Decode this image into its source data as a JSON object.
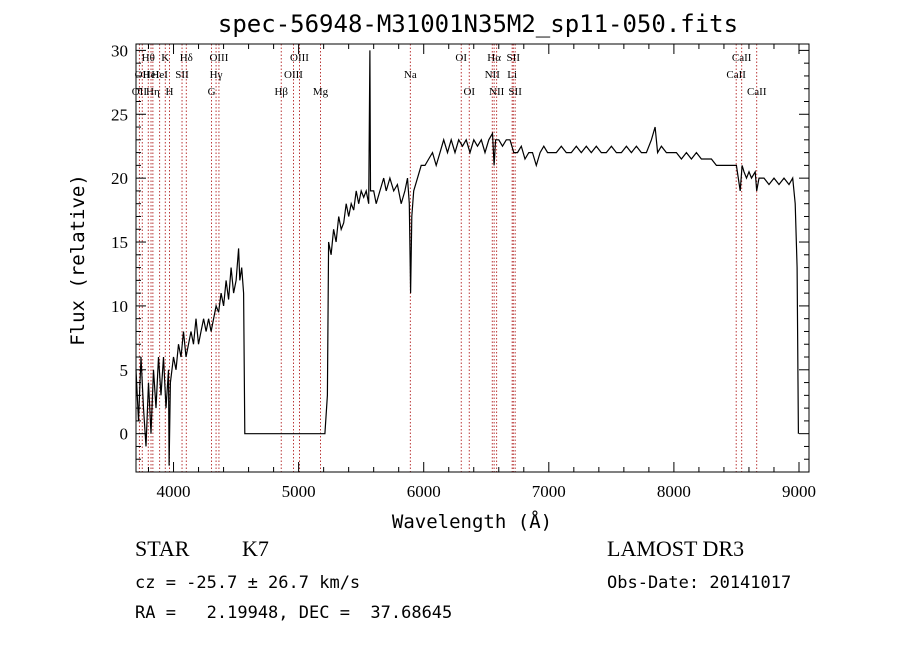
{
  "title": "spec-56948-M31001N35M2_sp11-050.fits",
  "info": {
    "object_type": "STAR",
    "subclass": "K7",
    "survey": "LAMOST DR3",
    "cz": "cz = -25.7 ± 26.7 km/s",
    "obs_date": "Obs-Date: 20141017",
    "radec": "RA =   2.19948, DEC =  37.68645"
  },
  "chart_data": {
    "type": "line",
    "title": "spec-56948-M31001N35M2_sp11-050.fits",
    "xlabel": "Wavelength (Å)",
    "ylabel": "Flux (relative)",
    "xlim": [
      3700,
      9080
    ],
    "ylim": [
      -3,
      30.5
    ],
    "xticks": [
      4000,
      5000,
      6000,
      7000,
      8000,
      9000
    ],
    "yticks": [
      0,
      5,
      10,
      15,
      20,
      25,
      30
    ],
    "series": [
      {
        "name": "flux",
        "points": [
          [
            3700,
            5
          ],
          [
            3720,
            1
          ],
          [
            3740,
            6
          ],
          [
            3760,
            2
          ],
          [
            3780,
            -1
          ],
          [
            3800,
            4
          ],
          [
            3820,
            0
          ],
          [
            3840,
            5
          ],
          [
            3860,
            2
          ],
          [
            3880,
            6
          ],
          [
            3900,
            3
          ],
          [
            3920,
            6
          ],
          [
            3940,
            2
          ],
          [
            3960,
            5
          ],
          [
            3965,
            -2.5
          ],
          [
            3975,
            4
          ],
          [
            4000,
            6
          ],
          [
            4020,
            5
          ],
          [
            4040,
            7
          ],
          [
            4060,
            6
          ],
          [
            4080,
            8
          ],
          [
            4100,
            6
          ],
          [
            4120,
            7
          ],
          [
            4140,
            8
          ],
          [
            4160,
            7
          ],
          [
            4180,
            9
          ],
          [
            4200,
            7
          ],
          [
            4220,
            8
          ],
          [
            4240,
            9
          ],
          [
            4260,
            8
          ],
          [
            4280,
            9
          ],
          [
            4300,
            8
          ],
          [
            4320,
            9
          ],
          [
            4340,
            10
          ],
          [
            4360,
            9.5
          ],
          [
            4380,
            11
          ],
          [
            4400,
            10
          ],
          [
            4420,
            12
          ],
          [
            4440,
            10.5
          ],
          [
            4460,
            13
          ],
          [
            4480,
            11
          ],
          [
            4500,
            12
          ],
          [
            4520,
            14.5
          ],
          [
            4530,
            12
          ],
          [
            4545,
            13
          ],
          [
            4560,
            11
          ],
          [
            4570,
            0
          ],
          [
            5210,
            0
          ],
          [
            5230,
            3
          ],
          [
            5240,
            15
          ],
          [
            5260,
            14
          ],
          [
            5280,
            16
          ],
          [
            5300,
            15
          ],
          [
            5320,
            17
          ],
          [
            5340,
            16
          ],
          [
            5360,
            16.5
          ],
          [
            5380,
            18
          ],
          [
            5400,
            17
          ],
          [
            5420,
            18
          ],
          [
            5440,
            17.5
          ],
          [
            5460,
            19
          ],
          [
            5480,
            18
          ],
          [
            5500,
            19
          ],
          [
            5520,
            18.5
          ],
          [
            5540,
            19
          ],
          [
            5560,
            18
          ],
          [
            5570,
            30
          ],
          [
            5575,
            19
          ],
          [
            5600,
            19
          ],
          [
            5620,
            18
          ],
          [
            5650,
            19
          ],
          [
            5680,
            20
          ],
          [
            5700,
            19
          ],
          [
            5730,
            20
          ],
          [
            5760,
            19
          ],
          [
            5790,
            19.5
          ],
          [
            5820,
            18
          ],
          [
            5850,
            19
          ],
          [
            5870,
            20
          ],
          [
            5885,
            18
          ],
          [
            5895,
            11
          ],
          [
            5905,
            17
          ],
          [
            5920,
            19
          ],
          [
            5950,
            20
          ],
          [
            5980,
            21
          ],
          [
            6010,
            21
          ],
          [
            6040,
            21.5
          ],
          [
            6070,
            22
          ],
          [
            6100,
            21
          ],
          [
            6130,
            22
          ],
          [
            6160,
            23
          ],
          [
            6190,
            22
          ],
          [
            6220,
            23
          ],
          [
            6250,
            22
          ],
          [
            6280,
            23
          ],
          [
            6310,
            22.5
          ],
          [
            6340,
            23
          ],
          [
            6370,
            22
          ],
          [
            6400,
            23
          ],
          [
            6430,
            22.5
          ],
          [
            6460,
            23
          ],
          [
            6490,
            22
          ],
          [
            6520,
            23
          ],
          [
            6550,
            23.5
          ],
          [
            6563,
            21
          ],
          [
            6575,
            23
          ],
          [
            6600,
            23
          ],
          [
            6630,
            22.5
          ],
          [
            6660,
            23
          ],
          [
            6690,
            23
          ],
          [
            6720,
            22
          ],
          [
            6750,
            22
          ],
          [
            6780,
            22.5
          ],
          [
            6810,
            21.5
          ],
          [
            6840,
            22
          ],
          [
            6870,
            22
          ],
          [
            6900,
            21
          ],
          [
            6930,
            22
          ],
          [
            6960,
            22.5
          ],
          [
            6990,
            22
          ],
          [
            7020,
            22
          ],
          [
            7060,
            22
          ],
          [
            7100,
            22.5
          ],
          [
            7140,
            22
          ],
          [
            7180,
            22
          ],
          [
            7220,
            22.5
          ],
          [
            7260,
            22
          ],
          [
            7300,
            22.5
          ],
          [
            7340,
            22
          ],
          [
            7380,
            22.5
          ],
          [
            7420,
            22
          ],
          [
            7460,
            22
          ],
          [
            7500,
            22.5
          ],
          [
            7540,
            22
          ],
          [
            7580,
            22
          ],
          [
            7620,
            22.5
          ],
          [
            7660,
            22
          ],
          [
            7700,
            22.5
          ],
          [
            7740,
            22
          ],
          [
            7780,
            22
          ],
          [
            7820,
            23
          ],
          [
            7850,
            24
          ],
          [
            7870,
            22
          ],
          [
            7900,
            22.5
          ],
          [
            7940,
            22
          ],
          [
            7980,
            22
          ],
          [
            8020,
            22
          ],
          [
            8060,
            21.5
          ],
          [
            8100,
            22
          ],
          [
            8140,
            21.5
          ],
          [
            8180,
            22
          ],
          [
            8220,
            21.5
          ],
          [
            8260,
            21.5
          ],
          [
            8300,
            21.5
          ],
          [
            8340,
            21
          ],
          [
            8380,
            21
          ],
          [
            8420,
            21
          ],
          [
            8460,
            21
          ],
          [
            8500,
            21
          ],
          [
            8530,
            19
          ],
          [
            8545,
            21
          ],
          [
            8560,
            20.5
          ],
          [
            8580,
            20
          ],
          [
            8600,
            20.5
          ],
          [
            8620,
            20
          ],
          [
            8650,
            20.5
          ],
          [
            8662,
            19
          ],
          [
            8680,
            20
          ],
          [
            8720,
            20
          ],
          [
            8760,
            19.5
          ],
          [
            8800,
            20
          ],
          [
            8840,
            19.5
          ],
          [
            8880,
            20
          ],
          [
            8920,
            19.5
          ],
          [
            8950,
            20
          ],
          [
            8970,
            18
          ],
          [
            8985,
            13
          ],
          [
            8995,
            0
          ]
        ]
      }
    ],
    "lines": [
      {
        "wl": 3727,
        "label": "OII",
        "row": 2
      },
      {
        "wl": 3750,
        "label": "OII",
        "row": 1
      },
      {
        "wl": 3798,
        "label": "Hθ",
        "row": 0
      },
      {
        "wl": 3820,
        "label": "HeI",
        "row": 1
      },
      {
        "wl": 3835,
        "label": "Hη",
        "row": 2
      },
      {
        "wl": 3889,
        "label": "HeI",
        "row": 1
      },
      {
        "wl": 3934,
        "label": "K",
        "row": 0
      },
      {
        "wl": 3968,
        "label": "H",
        "row": 2
      },
      {
        "wl": 4068,
        "label": "SII",
        "row": 1
      },
      {
        "wl": 4102,
        "label": "Hδ",
        "row": 0
      },
      {
        "wl": 4304,
        "label": "G",
        "row": 2
      },
      {
        "wl": 4340,
        "label": "Hγ",
        "row": 1
      },
      {
        "wl": 4363,
        "label": "OIII",
        "row": 0
      },
      {
        "wl": 4861,
        "label": "Hβ",
        "row": 2
      },
      {
        "wl": 4959,
        "label": "OIII",
        "row": 1
      },
      {
        "wl": 5007,
        "label": "OIII",
        "row": 0
      },
      {
        "wl": 5175,
        "label": "Mg",
        "row": 2
      },
      {
        "wl": 5893,
        "label": "Na",
        "row": 1
      },
      {
        "wl": 6300,
        "label": "OI",
        "row": 0
      },
      {
        "wl": 6364,
        "label": "OI",
        "row": 2
      },
      {
        "wl": 6548,
        "label": "NII",
        "row": 1
      },
      {
        "wl": 6563,
        "label": "Hα",
        "row": 0
      },
      {
        "wl": 6583,
        "label": "NII",
        "row": 2
      },
      {
        "wl": 6707,
        "label": "Li",
        "row": 1
      },
      {
        "wl": 6716,
        "label": "SII",
        "row": 0
      },
      {
        "wl": 6731,
        "label": "SII",
        "row": 2
      },
      {
        "wl": 8498,
        "label": "CaII",
        "row": 1
      },
      {
        "wl": 8542,
        "label": "CaII",
        "row": 0
      },
      {
        "wl": 8662,
        "label": "CaII",
        "row": 2
      }
    ]
  }
}
